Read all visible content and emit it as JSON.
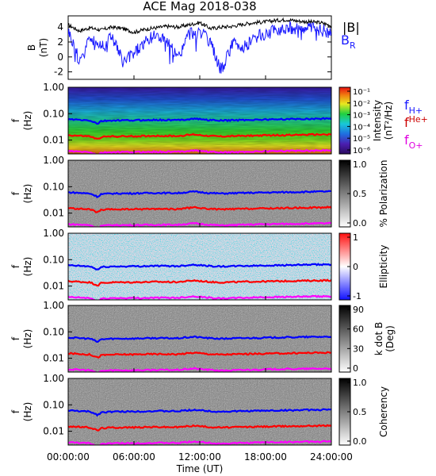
{
  "chart_data": {
    "type": "spectrogram",
    "title": "ACE Mag 2018-038",
    "xlabel": "Time (UT)",
    "x_ticks": [
      "00:00:00",
      "06:00:00",
      "12:00:00",
      "18:00:00",
      "24:00:00"
    ],
    "x_range_hours": [
      0,
      24
    ],
    "top_panel": {
      "type": "line",
      "ylabel_main": "B",
      "ylabel_unit": "(nT)",
      "ylim": [
        -3,
        5.5
      ],
      "y_ticks": [
        "4",
        "2",
        "0",
        "-2"
      ],
      "legend_B": "|B|",
      "legend_BR": "B",
      "legend_BR_sub": "R",
      "colors": {
        "B": "#000000",
        "BR": "#1a1aff"
      },
      "series": [
        {
          "name": "|B|",
          "x": [
            0,
            1,
            2,
            3,
            4,
            5,
            6,
            7,
            8,
            9,
            10,
            11,
            12,
            13,
            14,
            15,
            16,
            17,
            18,
            19,
            20,
            21,
            22,
            23,
            24
          ],
          "values": [
            4.3,
            3.5,
            3.9,
            3.6,
            4.0,
            3.8,
            3.3,
            3.7,
            3.9,
            4.1,
            4.0,
            4.3,
            4.6,
            3.8,
            4.0,
            4.1,
            4.4,
            4.6,
            4.7,
            4.9,
            5.0,
            4.8,
            4.7,
            4.6,
            4.2
          ]
        },
        {
          "name": "B_R",
          "x": [
            0,
            1,
            2,
            3,
            4,
            5,
            6,
            7,
            8,
            9,
            10,
            11,
            12,
            13,
            14,
            15,
            16,
            17,
            18,
            19,
            20,
            21,
            22,
            23,
            24
          ],
          "values": [
            3.6,
            -0.5,
            2.6,
            1.4,
            2.9,
            -0.8,
            0.6,
            1.9,
            2.9,
            2.2,
            -0.3,
            3.1,
            3.6,
            1.6,
            -1.8,
            1.9,
            1.2,
            2.6,
            3.0,
            3.6,
            4.0,
            3.8,
            3.9,
            3.7,
            3.2
          ]
        }
      ]
    },
    "freq_axis": {
      "scale": "log",
      "ylim": [
        0.003,
        1.0
      ],
      "ticks": [
        "1.00",
        "0.10",
        "0.01"
      ],
      "ylabel_main": "f",
      "ylabel_unit": "(Hz)"
    },
    "gyrofrequency_lines": {
      "x": [
        0,
        2,
        2.7,
        3,
        4,
        6,
        8,
        10,
        11.5,
        12,
        13,
        14,
        16,
        18,
        20,
        22,
        24
      ],
      "fH": [
        0.061,
        0.055,
        0.041,
        0.052,
        0.055,
        0.056,
        0.058,
        0.057,
        0.065,
        0.062,
        0.057,
        0.055,
        0.058,
        0.06,
        0.062,
        0.064,
        0.066
      ],
      "fHe": [
        0.0153,
        0.0138,
        0.0105,
        0.013,
        0.0138,
        0.014,
        0.0145,
        0.0142,
        0.0163,
        0.0155,
        0.0143,
        0.0138,
        0.0145,
        0.015,
        0.0155,
        0.016,
        0.0165
      ],
      "fO": [
        0.0038,
        0.0035,
        0.0026,
        0.0033,
        0.0035,
        0.0035,
        0.0036,
        0.0036,
        0.0041,
        0.0039,
        0.0036,
        0.0034,
        0.0036,
        0.0038,
        0.0039,
        0.004,
        0.0041
      ],
      "colors": {
        "fH": "#0000ff",
        "fHe": "#ff0000",
        "fO": "#ff00ff"
      }
    },
    "panels": [
      {
        "id": "intensity",
        "colormap": "rainbow",
        "cbar_label": "Intensity",
        "cbar_unit": "(nT²/Hz)",
        "cbar_ticks": [
          "10⁻¹",
          "10⁻²",
          "10⁻³",
          "10⁻⁴",
          "10⁻⁵",
          "10⁻⁶"
        ],
        "legend": [
          {
            "base": "f",
            "sub": "H+",
            "color": "#1a1aff"
          },
          {
            "base": "f",
            "sub": "He+",
            "color": "#cc0000"
          },
          {
            "base": "f",
            "sub": "O+",
            "color": "#e000e0"
          }
        ]
      },
      {
        "id": "polarization",
        "colormap": "gray",
        "cbar_label": "% Polarization",
        "cbar_ticks": [
          "1.0",
          "0.5",
          "0.0"
        ]
      },
      {
        "id": "ellipticity",
        "colormap": "bwr",
        "cbar_label": "Ellipticity",
        "cbar_ticks": [
          "1",
          "0",
          "-1"
        ]
      },
      {
        "id": "kdotb",
        "colormap": "gray",
        "cbar_label": "k dot B",
        "cbar_unit": "(Deg)",
        "cbar_ticks": [
          "90",
          "60",
          "30",
          "0"
        ]
      },
      {
        "id": "coherency",
        "colormap": "gray",
        "cbar_label": "Coherency",
        "cbar_ticks": [
          "1.0",
          "0.5",
          "0.0"
        ]
      }
    ]
  }
}
